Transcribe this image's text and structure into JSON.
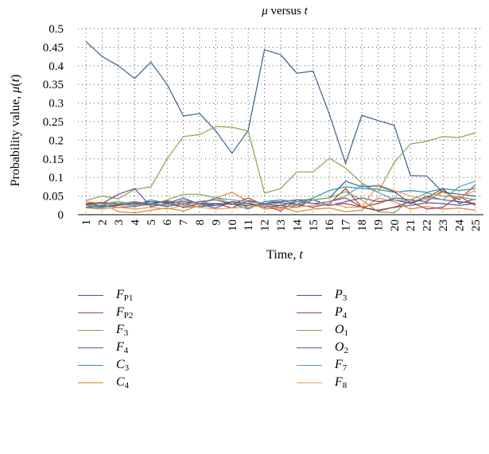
{
  "chart_data": {
    "type": "line",
    "title_var": "μ",
    "title_mid": " versus ",
    "title_var2": "t",
    "xlabel_main": "Time, ",
    "xlabel_var": "t",
    "ylabel_main": "Probability value, ",
    "ylabel_var": "μ",
    "ylabel_paren_open": "(",
    "ylabel_paren_var": "t",
    "ylabel_paren_close": ")",
    "x": [
      1,
      2,
      3,
      4,
      5,
      6,
      7,
      8,
      9,
      10,
      11,
      12,
      13,
      14,
      15,
      16,
      17,
      18,
      19,
      20,
      21,
      22,
      23,
      24,
      25
    ],
    "ylim": [
      0,
      0.5
    ],
    "yticks": [
      "0",
      "0.05",
      "0.1",
      "0.15",
      "0.2",
      "0.25",
      "0.3",
      "0.35",
      "0.4",
      "0.45",
      "0.5"
    ],
    "grid": "dotted",
    "legend_position": "bottom",
    "series": [
      {
        "name_main": "F",
        "name_sub": "P1",
        "color": "#3a5f8f",
        "values": [
          0.465,
          0.425,
          0.4,
          0.366,
          0.41,
          0.35,
          0.265,
          0.272,
          0.225,
          0.165,
          0.227,
          0.443,
          0.43,
          0.38,
          0.386,
          0.27,
          0.138,
          0.267,
          0.253,
          0.24,
          0.105,
          0.104,
          0.06,
          0.055,
          0.05
        ]
      },
      {
        "name_main": "F",
        "name_sub": "P2",
        "color": "#a8403d",
        "values": [
          0.03,
          0.033,
          0.03,
          0.032,
          0.028,
          0.022,
          0.03,
          0.02,
          0.03,
          0.018,
          0.038,
          0.03,
          0.032,
          0.027,
          0.02,
          0.03,
          0.07,
          0.02,
          0.03,
          0.045,
          0.04,
          0.035,
          0.065,
          0.04,
          0.08
        ]
      },
      {
        "name_main": "F",
        "name_sub": "3",
        "color": "#86a44a",
        "values": [
          0.038,
          0.05,
          0.043,
          0.068,
          0.075,
          0.15,
          0.21,
          0.215,
          0.237,
          0.235,
          0.225,
          0.058,
          0.07,
          0.115,
          0.115,
          0.152,
          0.125,
          0.085,
          0.06,
          0.14,
          0.19,
          0.197,
          0.21,
          0.207,
          0.22
        ]
      },
      {
        "name_main": "F",
        "name_sub": "4",
        "color": "#6e4c93",
        "values": [
          0.025,
          0.03,
          0.055,
          0.07,
          0.022,
          0.03,
          0.045,
          0.028,
          0.018,
          0.035,
          0.02,
          0.028,
          0.025,
          0.02,
          0.04,
          0.025,
          0.03,
          0.02,
          0.012,
          0.02,
          0.025,
          0.032,
          0.03,
          0.025,
          0.03
        ]
      },
      {
        "name_main": "C",
        "name_sub": "3",
        "color": "#2f8f9d",
        "values": [
          0.02,
          0.018,
          0.028,
          0.025,
          0.04,
          0.03,
          0.02,
          0.022,
          0.025,
          0.03,
          0.015,
          0.035,
          0.04,
          0.028,
          0.045,
          0.065,
          0.075,
          0.07,
          0.068,
          0.06,
          0.065,
          0.06,
          0.07,
          0.065,
          0.07
        ]
      },
      {
        "name_main": "C",
        "name_sub": "4",
        "color": "#d9822b",
        "values": [
          0.035,
          0.03,
          0.008,
          0.005,
          0.012,
          0.018,
          0.01,
          0.025,
          0.045,
          0.06,
          0.035,
          0.015,
          0.02,
          0.008,
          0.015,
          0.018,
          0.008,
          0.012,
          0.045,
          0.035,
          0.015,
          0.022,
          0.015,
          0.018,
          0.012
        ]
      },
      {
        "name_main": "P",
        "name_sub": "3",
        "color": "#3a5f8f",
        "values": [
          0.028,
          0.03,
          0.025,
          0.03,
          0.035,
          0.032,
          0.035,
          0.03,
          0.03,
          0.028,
          0.025,
          0.03,
          0.035,
          0.04,
          0.04,
          0.045,
          0.09,
          0.075,
          0.078,
          0.062,
          0.03,
          0.045,
          0.07,
          0.03,
          0.042
        ]
      },
      {
        "name_main": "P",
        "name_sub": "4",
        "color": "#a8403d",
        "values": [
          0.03,
          0.022,
          0.025,
          0.03,
          0.03,
          0.038,
          0.028,
          0.035,
          0.04,
          0.028,
          0.045,
          0.025,
          0.01,
          0.04,
          0.03,
          0.035,
          0.045,
          0.02,
          0.01,
          0.02,
          0.035,
          0.015,
          0.02,
          0.05,
          0.025
        ]
      },
      {
        "name_main": "O",
        "name_sub": "1",
        "color": "#86a44a",
        "values": [
          0.025,
          0.03,
          0.035,
          0.028,
          0.025,
          0.04,
          0.055,
          0.055,
          0.045,
          0.03,
          0.03,
          0.025,
          0.02,
          0.025,
          0.04,
          0.045,
          0.062,
          0.04,
          0.008,
          0.005,
          0.04,
          0.058,
          0.05,
          0.048,
          0.04
        ]
      },
      {
        "name_main": "O",
        "name_sub": "2",
        "color": "#6e4c93",
        "values": [
          0.02,
          0.025,
          0.02,
          0.022,
          0.03,
          0.035,
          0.02,
          0.03,
          0.025,
          0.035,
          0.03,
          0.02,
          0.025,
          0.035,
          0.03,
          0.025,
          0.035,
          0.045,
          0.035,
          0.04,
          0.03,
          0.05,
          0.04,
          0.035,
          0.03
        ]
      },
      {
        "name_main": "F",
        "name_sub": "7",
        "color": "#4e9fc4",
        "values": [
          0.025,
          0.02,
          0.03,
          0.035,
          0.03,
          0.025,
          0.04,
          0.03,
          0.045,
          0.04,
          0.035,
          0.03,
          0.04,
          0.035,
          0.03,
          0.035,
          0.05,
          0.08,
          0.06,
          0.04,
          0.035,
          0.045,
          0.04,
          0.075,
          0.09
        ]
      },
      {
        "name_main": "F",
        "name_sub": "8",
        "color": "#f09a4f",
        "values": [
          0.018,
          0.015,
          0.02,
          0.015,
          0.02,
          0.015,
          0.025,
          0.02,
          0.015,
          0.018,
          0.02,
          0.025,
          0.015,
          0.02,
          0.025,
          0.03,
          0.02,
          0.02,
          0.08,
          0.065,
          0.05,
          0.04,
          0.06,
          0.045,
          0.065
        ]
      }
    ]
  }
}
